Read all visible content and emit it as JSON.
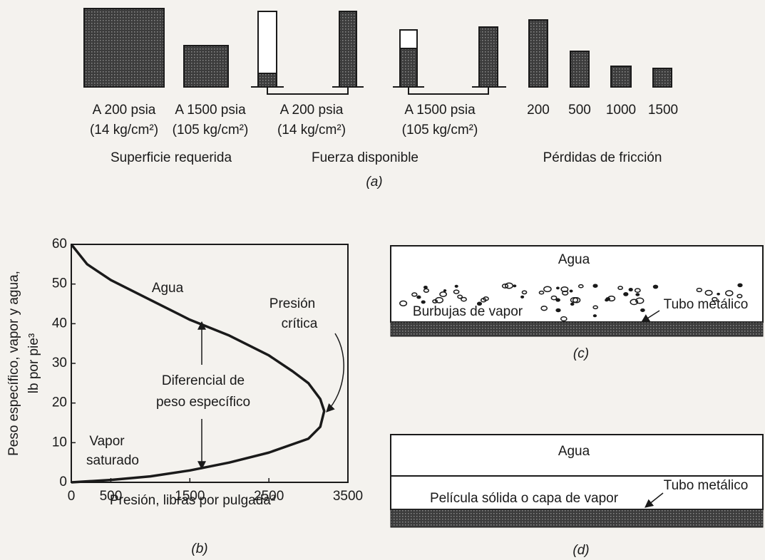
{
  "panel_a": {
    "labels": [
      [
        "A 200 psia",
        "(14 kg/cm²)"
      ],
      [
        "A 1500 psia",
        "(105 kg/cm²)"
      ],
      [
        "A 200 psia",
        "(14 kg/cm²)"
      ],
      [
        "A 1500 psia",
        "(105 kg/cm²)"
      ],
      [
        "200"
      ],
      [
        "500"
      ],
      [
        "1000"
      ],
      [
        "1500"
      ]
    ],
    "groups": [
      "Superficie requerida",
      "Fuerza disponible",
      "Pérdidas de fricción"
    ],
    "caption": "(a)"
  },
  "chart_data": {
    "type": "line",
    "x_label": "Presión, libras por pulgada²",
    "y_label": [
      "Peso específico, vapor y agua,",
      "lb por pie³"
    ],
    "annotations": [
      "Agua",
      "Diferencial de",
      "peso específico",
      "Vapor",
      "saturado",
      "Presión",
      "crítica"
    ],
    "caption": "(b)",
    "x": [
      0,
      200,
      500,
      1000,
      1500,
      2000,
      2500,
      2800,
      3000,
      3150,
      3200,
      3150,
      3000,
      2500,
      2000,
      1500,
      1000,
      500,
      0
    ],
    "values": [
      60,
      55,
      51,
      46,
      41,
      37,
      32,
      28,
      25,
      21,
      18,
      14,
      11,
      7.5,
      5,
      3,
      1.5,
      0.6,
      0
    ],
    "color": "#1a1a1a",
    "xlim": [
      0,
      3500
    ],
    "xticks": [
      0,
      500,
      1500,
      2500,
      3500
    ],
    "ylim": [
      0,
      60
    ],
    "yticks": [
      0,
      10,
      20,
      30,
      40,
      50,
      60
    ]
  },
  "panel_c": {
    "water": "Agua",
    "bubbles": "Burbujas de vapor",
    "tube": "Tubo metálico",
    "caption": "(c)"
  },
  "panel_d": {
    "water": "Agua",
    "tube": "Tubo metálico",
    "film": "Película sólida o capa de vapor",
    "caption": "(d)"
  }
}
